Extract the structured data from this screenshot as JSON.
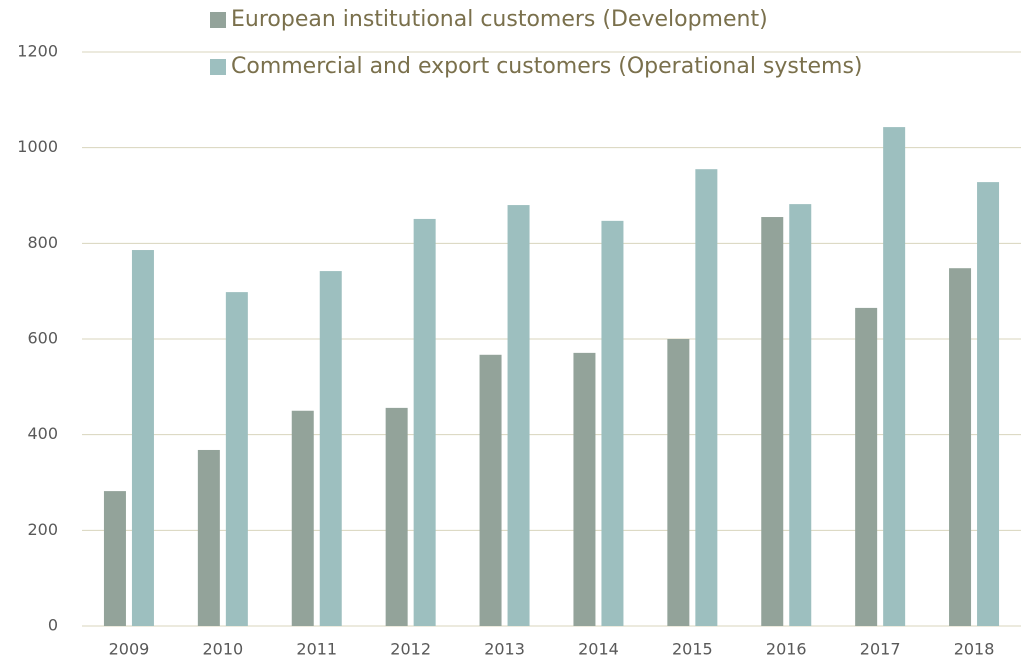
{
  "chart_data": {
    "type": "bar",
    "categories": [
      "2009",
      "2010",
      "2011",
      "2012",
      "2013",
      "2014",
      "2015",
      "2016",
      "2017",
      "2018"
    ],
    "series": [
      {
        "name": "European institutional customers (Development)",
        "color": "#93a39a",
        "values": [
          282,
          368,
          450,
          456,
          567,
          571,
          600,
          855,
          665,
          748
        ]
      },
      {
        "name": "Commercial and export customers (Operational systems)",
        "color": "#9dbfbf",
        "values": [
          786,
          698,
          742,
          851,
          880,
          847,
          955,
          882,
          1043,
          928
        ]
      }
    ],
    "ylim": [
      0,
      1200
    ],
    "yticks": [
      0,
      200,
      400,
      600,
      800,
      1000,
      1200
    ],
    "grid": true
  }
}
